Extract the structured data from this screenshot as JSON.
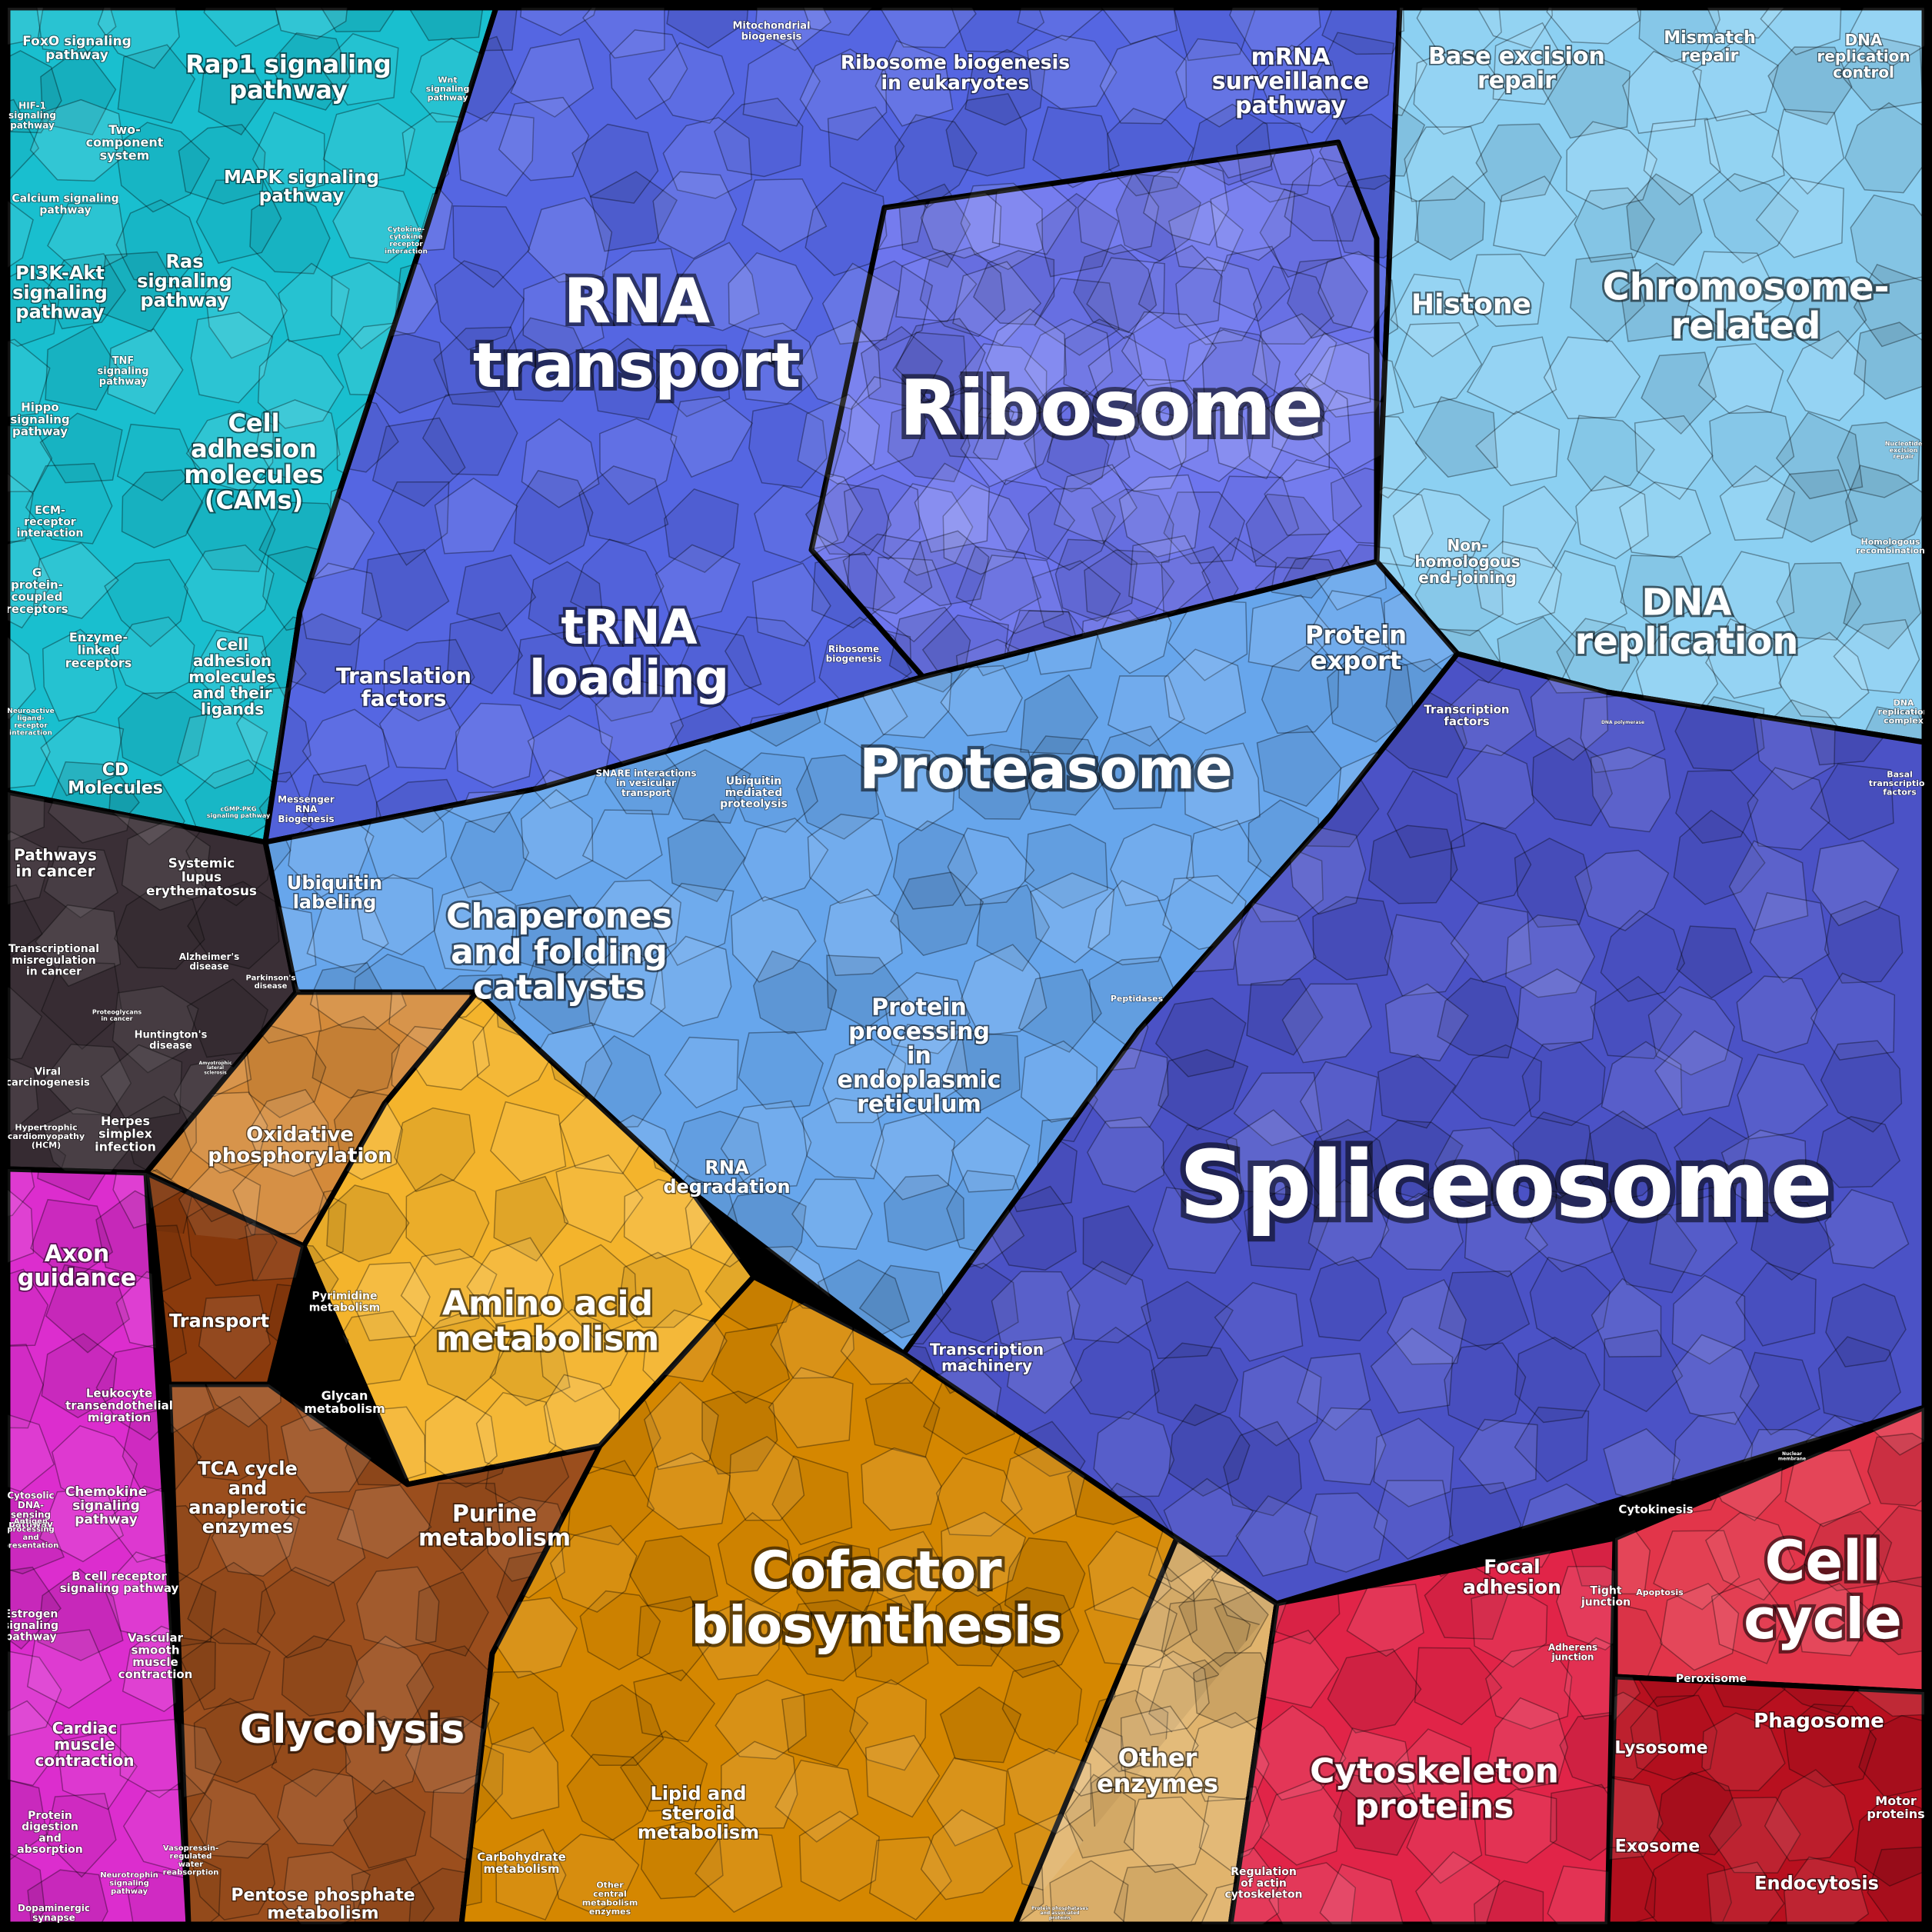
{
  "colors": {
    "signaling": "#18c3d2",
    "rna_blue": "#5a6ce6",
    "ribosome": "#6f78f0",
    "dna": "#8ccff0",
    "proteasome": "#66a6ec",
    "chaperone": "#6a9ae8",
    "spliceosome": "#4a50c4",
    "disease": "#3b2f35",
    "axon": "#e02bd0",
    "oxphos": "#d58a3a",
    "amino": "#f6b52c",
    "cofactor": "#d68700",
    "glycolysis": "#9c4e1d",
    "transport": "#8a3a0c",
    "other_enzymes": "#e0b46c",
    "cytoskeleton": "#e02246",
    "cell_cycle": "#e03346",
    "phagosome": "#b8101e",
    "border": "#000000"
  },
  "regions": [
    {
      "id": "signaling",
      "label": "",
      "color": "#18bfcf"
    },
    {
      "id": "rna-transport",
      "label": "RNA transport"
    },
    {
      "id": "ribosome",
      "label": "Ribosome"
    },
    {
      "id": "dna",
      "label": ""
    },
    {
      "id": "proteasome",
      "label": "Proteasome"
    },
    {
      "id": "spliceosome",
      "label": "Spliceosome"
    },
    {
      "id": "cofactor",
      "label": "Cofactor biosynthesis"
    }
  ],
  "labels": [
    {
      "key": "foxo",
      "lines": [
        "FoxO signaling",
        "pathway"
      ]
    },
    {
      "key": "rap1",
      "lines": [
        "Rap1 signaling",
        "pathway"
      ]
    },
    {
      "key": "wnt",
      "lines": [
        "Wnt",
        "signaling",
        "pathway"
      ]
    },
    {
      "key": "hif1",
      "lines": [
        "HIF-1",
        "signaling",
        "pathway"
      ]
    },
    {
      "key": "twocomp",
      "lines": [
        "Two-",
        "component",
        "system"
      ]
    },
    {
      "key": "mapk",
      "lines": [
        "MAPK signaling",
        "pathway"
      ]
    },
    {
      "key": "calcium",
      "lines": [
        "Calcium signaling",
        "pathway"
      ]
    },
    {
      "key": "ras",
      "lines": [
        "Ras",
        "signaling",
        "pathway"
      ]
    },
    {
      "key": "cytokine",
      "lines": [
        "Cytokine-",
        "cytokine",
        "receptor",
        "interaction"
      ]
    },
    {
      "key": "pi3k",
      "lines": [
        "PI3K-Akt",
        "signaling",
        "pathway"
      ]
    },
    {
      "key": "tnf",
      "lines": [
        "TNF",
        "signaling",
        "pathway"
      ]
    },
    {
      "key": "hippo",
      "lines": [
        "Hippo",
        "signaling",
        "pathway"
      ]
    },
    {
      "key": "cams",
      "lines": [
        "Cell",
        "adhesion",
        "molecules",
        "(CAMs)"
      ]
    },
    {
      "key": "ecm",
      "lines": [
        "ECM-",
        "receptor",
        "interaction"
      ]
    },
    {
      "key": "gpcr",
      "lines": [
        "G",
        "protein-",
        "coupled",
        "receptors"
      ]
    },
    {
      "key": "enzlinked",
      "lines": [
        "Enzyme-",
        "linked",
        "receptors"
      ]
    },
    {
      "key": "cellligands",
      "lines": [
        "Cell",
        "adhesion",
        "molecules",
        "and their",
        "ligands"
      ]
    },
    {
      "key": "neuroactive",
      "lines": [
        "Neuroactive",
        "ligand-",
        "receptor",
        "interaction"
      ]
    },
    {
      "key": "cd",
      "lines": [
        "CD",
        "Molecules"
      ]
    },
    {
      "key": "cgmp",
      "lines": [
        "cGMP-PKG",
        "signaling pathway"
      ]
    },
    {
      "key": "mito",
      "lines": [
        "Mitochondrial",
        "biogenesis"
      ]
    },
    {
      "key": "ribobio",
      "lines": [
        "Ribosome biogenesis",
        "in eukaryotes"
      ]
    },
    {
      "key": "mrna",
      "lines": [
        "mRNA",
        "surveillance",
        "pathway"
      ]
    },
    {
      "key": "ber",
      "lines": [
        "Base excision",
        "repair"
      ]
    },
    {
      "key": "mismatch",
      "lines": [
        "Mismatch",
        "repair"
      ]
    },
    {
      "key": "dnarep",
      "lines": [
        "DNA",
        "replication",
        "control"
      ]
    },
    {
      "key": "rnatransport",
      "lines": [
        "RNA",
        "transport"
      ]
    },
    {
      "key": "ribosome",
      "lines": [
        "Ribosome"
      ]
    },
    {
      "key": "histone",
      "lines": [
        "Histone"
      ]
    },
    {
      "key": "chromosome",
      "lines": [
        "Chromosome-",
        "related"
      ]
    },
    {
      "key": "nucexc",
      "lines": [
        "Nucleotide",
        "excision",
        "repair"
      ]
    },
    {
      "key": "nhej",
      "lines": [
        "Non-",
        "homologous",
        "end-joining"
      ]
    },
    {
      "key": "homrec",
      "lines": [
        "Homologous",
        "recombination"
      ]
    },
    {
      "key": "dnareplication",
      "lines": [
        "DNA",
        "replication"
      ]
    },
    {
      "key": "dnacomplex",
      "lines": [
        "DNA",
        "replication",
        "complex"
      ]
    },
    {
      "key": "trna",
      "lines": [
        "tRNA",
        "loading"
      ]
    },
    {
      "key": "translation",
      "lines": [
        "Translation",
        "factors"
      ]
    },
    {
      "key": "ribobio2",
      "lines": [
        "Ribosome",
        "biogenesis"
      ]
    },
    {
      "key": "protexport",
      "lines": [
        "Protein",
        "export"
      ]
    },
    {
      "key": "tf1",
      "lines": [
        "Transcription",
        "factors"
      ]
    },
    {
      "key": "dnapol",
      "lines": [
        "DNA polymerase"
      ]
    },
    {
      "key": "basaltf",
      "lines": [
        "Basal",
        "transcription",
        "factors"
      ]
    },
    {
      "key": "messenger",
      "lines": [
        "Messenger",
        "RNA",
        "Biogenesis"
      ]
    },
    {
      "key": "snare",
      "lines": [
        "SNARE interactions",
        "in vesicular",
        "transport"
      ]
    },
    {
      "key": "ubiquitin",
      "lines": [
        "Ubiquitin",
        "mediated",
        "proteolysis"
      ]
    },
    {
      "key": "proteasome",
      "lines": [
        "Proteasome"
      ]
    },
    {
      "key": "ubilabel",
      "lines": [
        "Ubiquitin",
        "labeling"
      ]
    },
    {
      "key": "chaperones",
      "lines": [
        "Chaperones",
        "and folding",
        "catalysts"
      ]
    },
    {
      "key": "peptidases",
      "lines": [
        "Peptidases"
      ]
    },
    {
      "key": "er",
      "lines": [
        "Protein",
        "processing",
        "in",
        "endoplasmic",
        "reticulum"
      ]
    },
    {
      "key": "pathcancer",
      "lines": [
        "Pathways",
        "in cancer"
      ]
    },
    {
      "key": "sle",
      "lines": [
        "Systemic",
        "lupus",
        "erythematosus"
      ]
    },
    {
      "key": "transmis",
      "lines": [
        "Transcriptional",
        "misregulation",
        "in cancer"
      ]
    },
    {
      "key": "alz",
      "lines": [
        "Alzheimer's",
        "disease"
      ]
    },
    {
      "key": "proteogly",
      "lines": [
        "Proteoglycans",
        "in cancer"
      ]
    },
    {
      "key": "park",
      "lines": [
        "Parkinson's",
        "disease"
      ]
    },
    {
      "key": "hunt",
      "lines": [
        "Huntington's",
        "disease"
      ]
    },
    {
      "key": "amyo",
      "lines": [
        "Amyotrophic",
        "lateral",
        "sclerosis"
      ]
    },
    {
      "key": "viral",
      "lines": [
        "Viral",
        "carcinogenesis"
      ]
    },
    {
      "key": "hcm",
      "lines": [
        "Hypertrophic",
        "cardiomyopathy",
        "(HCM)"
      ]
    },
    {
      "key": "herpes",
      "lines": [
        "Herpes",
        "simplex",
        "infection"
      ]
    },
    {
      "key": "oxphos",
      "lines": [
        "Oxidative",
        "phosphorylation"
      ]
    },
    {
      "key": "rnadeg",
      "lines": [
        "RNA",
        "degradation"
      ]
    },
    {
      "key": "spliceosome",
      "lines": [
        "Spliceosome"
      ]
    },
    {
      "key": "axon",
      "lines": [
        "Axon",
        "guidance"
      ]
    },
    {
      "key": "transport",
      "lines": [
        "Transport"
      ]
    },
    {
      "key": "pyrimidine",
      "lines": [
        "Pyrimidine",
        "metabolism"
      ]
    },
    {
      "key": "amino",
      "lines": [
        "Amino acid",
        "metabolism"
      ]
    },
    {
      "key": "glycan",
      "lines": [
        "Glycan",
        "metabolism"
      ]
    },
    {
      "key": "txmachinery",
      "lines": [
        "Transcription",
        "machinery"
      ]
    },
    {
      "key": "cytosolic",
      "lines": [
        "Cytosolic",
        "DNA-",
        "sensing",
        "pathway"
      ]
    },
    {
      "key": "leuko",
      "lines": [
        "Leukocyte",
        "transendothelial",
        "migration"
      ]
    },
    {
      "key": "chemokine",
      "lines": [
        "Chemokine",
        "signaling",
        "pathway"
      ]
    },
    {
      "key": "antigen",
      "lines": [
        "Antigen",
        "processing",
        "and",
        "presentation"
      ]
    },
    {
      "key": "bcell",
      "lines": [
        "B cell receptor",
        "signaling pathway"
      ]
    },
    {
      "key": "tca",
      "lines": [
        "TCA cycle",
        "and",
        "anaplerotic",
        "enzymes"
      ]
    },
    {
      "key": "purine",
      "lines": [
        "Purine",
        "metabolism"
      ]
    },
    {
      "key": "cofactor",
      "lines": [
        "Cofactor",
        "biosynthesis"
      ]
    },
    {
      "key": "nuclear",
      "lines": [
        "Nuclear",
        "membrane"
      ]
    },
    {
      "key": "cytokinesis",
      "lines": [
        "Cytokinesis"
      ]
    },
    {
      "key": "focal",
      "lines": [
        "Focal",
        "adhesion"
      ]
    },
    {
      "key": "tight",
      "lines": [
        "Tight",
        "junction"
      ]
    },
    {
      "key": "apoptosis",
      "lines": [
        "Apoptosis"
      ]
    },
    {
      "key": "cellcycle",
      "lines": [
        "Cell",
        "cycle"
      ]
    },
    {
      "key": "estrogen",
      "lines": [
        "Estrogen",
        "signaling",
        "pathway"
      ]
    },
    {
      "key": "vascular",
      "lines": [
        "Vascular",
        "smooth",
        "muscle",
        "contraction"
      ]
    },
    {
      "key": "adherens",
      "lines": [
        "Adherens",
        "junction"
      ]
    },
    {
      "key": "peroxisome",
      "lines": [
        "Peroxisome"
      ]
    },
    {
      "key": "cardiac",
      "lines": [
        "Cardiac",
        "muscle",
        "contraction"
      ]
    },
    {
      "key": "glycolysis",
      "lines": [
        "Glycolysis"
      ]
    },
    {
      "key": "phagosome",
      "lines": [
        "Phagosome"
      ]
    },
    {
      "key": "lysosome",
      "lines": [
        "Lysosome"
      ]
    },
    {
      "key": "otherenz",
      "lines": [
        "Other",
        "enzymes"
      ]
    },
    {
      "key": "cytoskeleton",
      "lines": [
        "Cytoskeleton",
        "proteins"
      ]
    },
    {
      "key": "lipid",
      "lines": [
        "Lipid and",
        "steroid",
        "metabolism"
      ]
    },
    {
      "key": "motor",
      "lines": [
        "Motor",
        "proteins"
      ]
    },
    {
      "key": "protdig",
      "lines": [
        "Protein",
        "digestion",
        "and",
        "absorption"
      ]
    },
    {
      "key": "exosome",
      "lines": [
        "Exosome"
      ]
    },
    {
      "key": "carb",
      "lines": [
        "Carbohydrate",
        "metabolism"
      ]
    },
    {
      "key": "vaso",
      "lines": [
        "Vasopressin-",
        "regulated",
        "water",
        "reabsorption"
      ]
    },
    {
      "key": "neurotrophin",
      "lines": [
        "Neurotrophin",
        "signaling",
        "pathway"
      ]
    },
    {
      "key": "regactin",
      "lines": [
        "Regulation",
        "of actin",
        "cytoskeleton"
      ]
    },
    {
      "key": "endocytosis",
      "lines": [
        "Endocytosis"
      ]
    },
    {
      "key": "pentose",
      "lines": [
        "Pentose phosphate",
        "metabolism"
      ]
    },
    {
      "key": "othercentral",
      "lines": [
        "Other",
        "central",
        "metabolism",
        "enzymes"
      ]
    },
    {
      "key": "dopamine",
      "lines": [
        "Dopaminergic",
        "synapse"
      ]
    },
    {
      "key": "protphos",
      "lines": [
        "Protein phosphatases",
        "and associated",
        "proteins"
      ]
    }
  ]
}
